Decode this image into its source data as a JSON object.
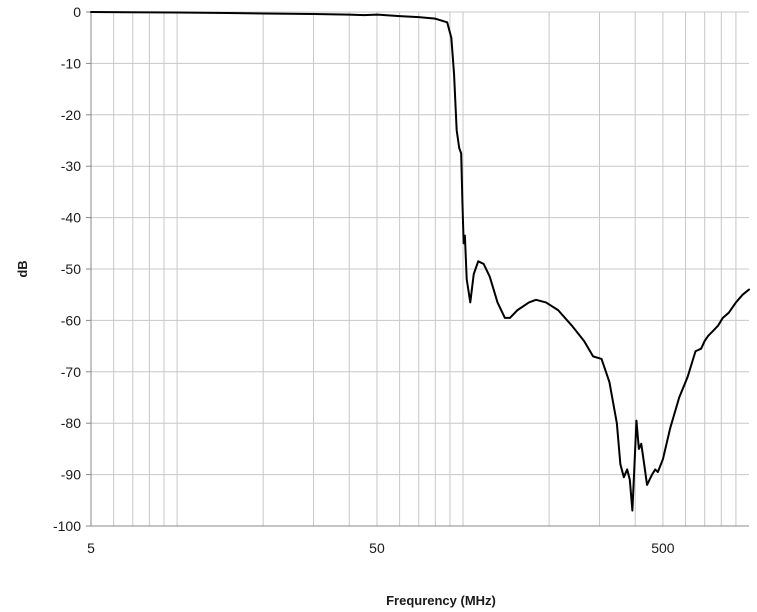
{
  "chart_data": {
    "type": "line",
    "title": "",
    "xlabel": "Frequrency (MHz)",
    "ylabel": "dB",
    "x_scale": "log",
    "xlim": [
      5,
      1000
    ],
    "ylim": [
      -100,
      0
    ],
    "x_ticks": [
      {
        "value": 5,
        "label": "5"
      },
      {
        "value": 50,
        "label": "50"
      },
      {
        "value": 500,
        "label": "500"
      }
    ],
    "y_ticks": [
      {
        "value": 0,
        "label": "0"
      },
      {
        "value": -10,
        "label": "-10"
      },
      {
        "value": -20,
        "label": "-20"
      },
      {
        "value": -30,
        "label": "-30"
      },
      {
        "value": -40,
        "label": "-40"
      },
      {
        "value": -50,
        "label": "-50"
      },
      {
        "value": -60,
        "label": "-60"
      },
      {
        "value": -70,
        "label": "-70"
      },
      {
        "value": -80,
        "label": "-80"
      },
      {
        "value": -90,
        "label": "-90"
      },
      {
        "value": -100,
        "label": "-100"
      }
    ],
    "grid": true,
    "legend": "none",
    "colors": {
      "line": "#000000",
      "grid": "#c8c8c8",
      "axis": "#888888"
    },
    "series": [
      {
        "name": "",
        "points": [
          [
            5,
            0
          ],
          [
            10,
            -0.1
          ],
          [
            15,
            -0.2
          ],
          [
            20,
            -0.3
          ],
          [
            30,
            -0.4
          ],
          [
            40,
            -0.5
          ],
          [
            45,
            -0.6
          ],
          [
            50,
            -0.5
          ],
          [
            60,
            -0.8
          ],
          [
            70,
            -1.0
          ],
          [
            80,
            -1.3
          ],
          [
            88,
            -2.0
          ],
          [
            91,
            -5
          ],
          [
            93,
            -12
          ],
          [
            95,
            -23
          ],
          [
            97,
            -26.5
          ],
          [
            98.5,
            -27.5
          ],
          [
            99.5,
            -37
          ],
          [
            100.5,
            -45
          ],
          [
            101.5,
            -43.5
          ],
          [
            103,
            -52
          ],
          [
            106,
            -56.5
          ],
          [
            109,
            -51
          ],
          [
            113,
            -48.5
          ],
          [
            118,
            -49
          ],
          [
            124,
            -51.5
          ],
          [
            132,
            -56.5
          ],
          [
            140,
            -59.5
          ],
          [
            146,
            -59.5
          ],
          [
            155,
            -58
          ],
          [
            170,
            -56.5
          ],
          [
            180,
            -56
          ],
          [
            195,
            -56.5
          ],
          [
            215,
            -58
          ],
          [
            240,
            -61
          ],
          [
            265,
            -64
          ],
          [
            285,
            -67
          ],
          [
            305,
            -67.5
          ],
          [
            325,
            -72
          ],
          [
            345,
            -80
          ],
          [
            355,
            -88
          ],
          [
            365,
            -90.5
          ],
          [
            375,
            -89
          ],
          [
            383,
            -91
          ],
          [
            391,
            -97
          ],
          [
            397,
            -89
          ],
          [
            404,
            -79.5
          ],
          [
            412,
            -85
          ],
          [
            420,
            -84
          ],
          [
            430,
            -88
          ],
          [
            440,
            -92
          ],
          [
            458,
            -90
          ],
          [
            470,
            -89
          ],
          [
            480,
            -89.5
          ],
          [
            500,
            -87
          ],
          [
            530,
            -81
          ],
          [
            570,
            -75
          ],
          [
            610,
            -71
          ],
          [
            650,
            -66
          ],
          [
            680,
            -65.5
          ],
          [
            700,
            -64
          ],
          [
            720,
            -63
          ],
          [
            750,
            -62
          ],
          [
            780,
            -61
          ],
          [
            810,
            -59.5
          ],
          [
            850,
            -58.5
          ],
          [
            900,
            -56.5
          ],
          [
            950,
            -55
          ],
          [
            1000,
            -54
          ]
        ]
      }
    ]
  }
}
